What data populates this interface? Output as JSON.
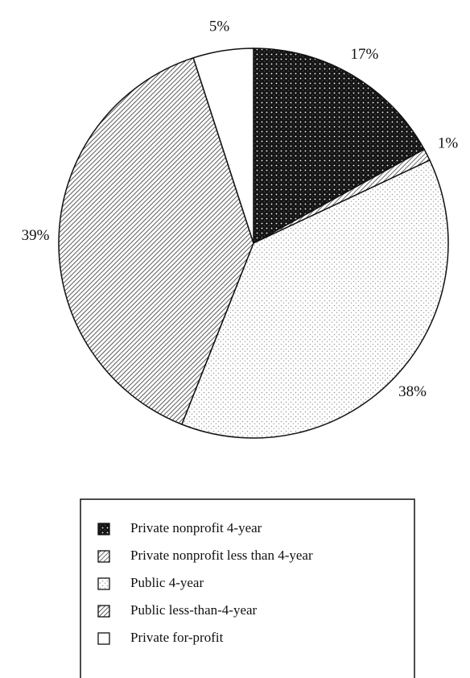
{
  "chart_data": {
    "type": "pie",
    "categories": [
      "Private nonprofit 4-year",
      "Private nonprofit less than 4-year",
      "Public 4-year",
      "Public less-than-4-year",
      "Private for-profit"
    ],
    "values": [
      17,
      1,
      38,
      39,
      5
    ],
    "value_labels": [
      "17%",
      "1%",
      "38%",
      "39%",
      "5%"
    ],
    "colors": [
      "#151515",
      "#444444",
      "#9a9a9a",
      "#333333",
      "#ffffff"
    ],
    "patterns": [
      "dots",
      "stripes",
      "dots",
      "stripes",
      "solid"
    ]
  }
}
